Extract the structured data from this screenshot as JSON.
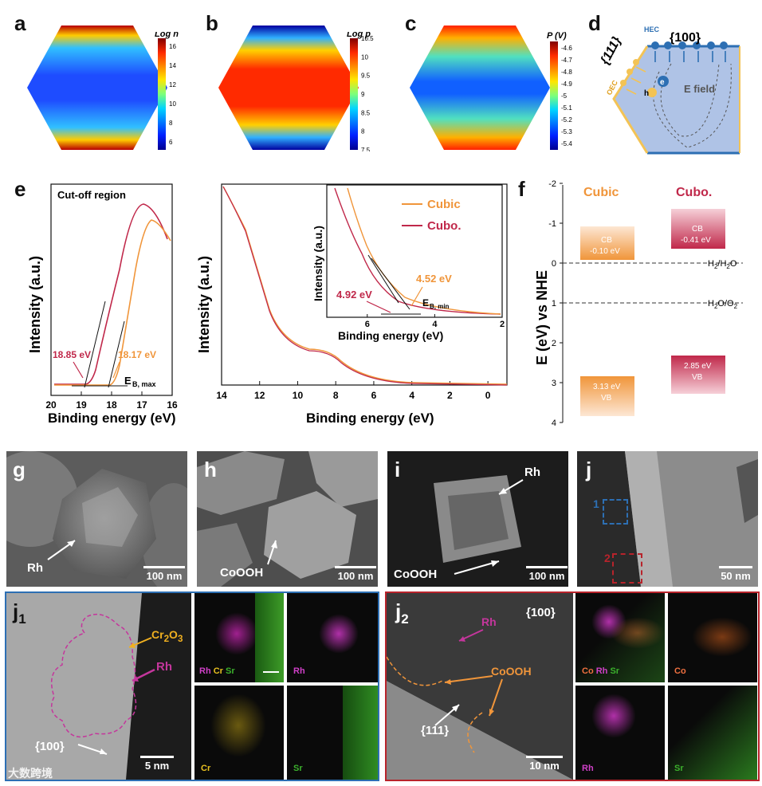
{
  "panel_labels": {
    "a": "a",
    "b": "b",
    "c": "c",
    "d": "d",
    "e": "e",
    "f": "f",
    "g": "g",
    "h": "h",
    "i": "i",
    "j": "j",
    "j1": "j",
    "j1_sub": "1",
    "j2": "j",
    "j2_sub": "2"
  },
  "colorbars": {
    "a": {
      "title": "Log n",
      "ticks": [
        "16",
        "14",
        "12",
        "10",
        "8",
        "6"
      ]
    },
    "b": {
      "title": "Log p",
      "ticks": [
        "10.5",
        "10",
        "9.5",
        "9",
        "8.5",
        "8",
        "7.5"
      ]
    },
    "c": {
      "title": "P (V)",
      "ticks": [
        "-4.6",
        "-4.7",
        "-4.8",
        "-4.9",
        "-5",
        "-5.1",
        "-5.2",
        "-5.3",
        "-5.4"
      ]
    }
  },
  "panel_d": {
    "facet_top": "{100}",
    "facet_side": "{111}",
    "hec": "HEC",
    "oec": "OEC",
    "electron": "e",
    "hole": "h",
    "field": "E field"
  },
  "panel_e_left": {
    "title": "Cut-off region",
    "ylabel": "Intensity (a.u.)",
    "xlabel": "Binding energy (eV)",
    "ticks": [
      "20",
      "19",
      "18",
      "17",
      "16"
    ],
    "ann_cubo": "18.85 eV",
    "ann_cubic": "18.17 eV",
    "emax": "E",
    "emax_sub": "B, max"
  },
  "panel_e_right": {
    "ylabel": "Intensity (a.u.)",
    "xlabel": "Binding energy (eV)",
    "ticks": [
      "14",
      "12",
      "10",
      "8",
      "6",
      "4",
      "2",
      "0"
    ],
    "inset_ylabel": "Intensity (a.u.)",
    "inset_xlabel": "Binding energy (eV)",
    "inset_ticks": [
      "6",
      "4",
      "2"
    ],
    "legend_cubic": "Cubic",
    "legend_cubo": "Cubo.",
    "ann_cubo": "4.92 eV",
    "ann_cubic": "4.52 eV",
    "emin": "E",
    "emin_sub": "B, min"
  },
  "panel_f": {
    "ylabel": "E (eV) vs NHE",
    "ticks": [
      "-2",
      "-1",
      "0",
      "1",
      "2",
      "3",
      "4"
    ],
    "cubic": {
      "name": "Cubic",
      "cb": "CB",
      "cb_val": "-0.10 eV",
      "vb": "VB",
      "vb_val": "3.13 eV"
    },
    "cubo": {
      "name": "Cubo.",
      "cb": "CB",
      "cb_val": "-0.41 eV",
      "vb": "VB",
      "vb_val": "2.85 eV"
    },
    "h2": "H",
    "h2_sub": "2",
    "h2_mid": "/H",
    "h2o_sub": "2",
    "h2o_end": "O",
    "o2_a": "H",
    "o2_sub1": "2",
    "o2_b": "O/O",
    "o2_sub2": "2"
  },
  "sem": {
    "g": {
      "label": "Rh",
      "scale": "100 nm"
    },
    "h": {
      "label": "CoOOH",
      "scale": "100 nm"
    },
    "i": {
      "label_rh": "Rh",
      "label_co": "CoOOH",
      "scale": "100 nm"
    },
    "j": {
      "box1": "1",
      "box2": "2",
      "scale": "50 nm"
    }
  },
  "j1": {
    "cr2o3_a": "Cr",
    "cr2o3_s1": "2",
    "cr2o3_b": "O",
    "cr2o3_s2": "3",
    "rh": "Rh",
    "facet": "{100}",
    "scale": "5 nm",
    "map_all": {
      "a": "Rh",
      "b": "Cr",
      "c": "Sr"
    },
    "map_rh": "Rh",
    "map_cr": "Cr",
    "map_sr": "Sr"
  },
  "j2": {
    "facet_top": "{100}",
    "facet_side": "{111}",
    "rh": "Rh",
    "cooh": "CoOOH",
    "scale": "10 nm",
    "map_all": {
      "a": "Co",
      "b": "Rh",
      "c": "Sr"
    },
    "map_co": "Co",
    "map_rh": "Rh",
    "map_sr": "Sr"
  },
  "watermark": "大数跨境",
  "colors": {
    "cubic": "#f0953a",
    "cubo": "#c0284a",
    "blue_frame": "#2d6fb3",
    "red_frame": "#b8232b"
  }
}
